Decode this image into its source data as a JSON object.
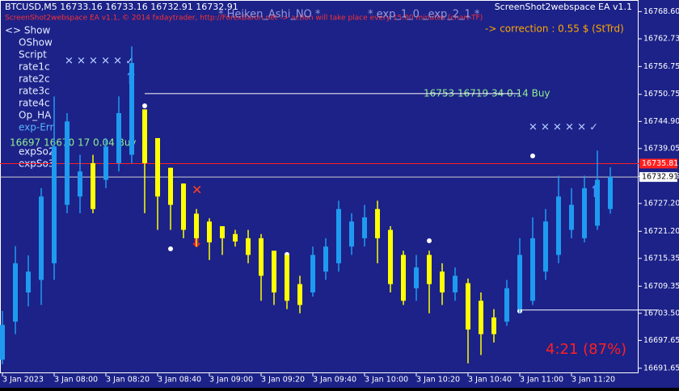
{
  "chart_data": {
    "type": "candlestick",
    "title": "BTCUSD,M5  16733.16 16733.16 16732.91 16732.91",
    "categories": [
      "3 Jan 2023",
      null,
      null,
      null,
      "3 Jan 08:00",
      null,
      null,
      null,
      "3 Jan 08:20",
      null,
      null,
      null,
      "3 Jan 08:40",
      null,
      null,
      null,
      "3 Jan 09:00",
      null,
      null,
      null,
      "3 Jan 09:20",
      null,
      null,
      null,
      "3 Jan 09:40",
      null,
      null,
      null,
      "3 Jan 10:00",
      null,
      null,
      null,
      "3 Jan 10:20",
      null,
      null,
      null,
      "3 Jan 10:40",
      null,
      null,
      null,
      "3 Jan 11:00",
      null,
      null,
      null,
      "3 Jan 11:20",
      null,
      null,
      null
    ],
    "open": [
      16693.5,
      16701.7,
      16708.0,
      16710.7,
      16714.3,
      16726.9,
      16728.7,
      16735.9,
      16732.3,
      16735.9,
      16737.7,
      16747.5,
      16741.3,
      16734.9,
      16731.5,
      16725.0,
      16723.3,
      16722.3,
      16720.6,
      16719.7,
      16719.7,
      16717.0,
      16716.1,
      16709.8,
      16708.0,
      16712.5,
      16714.3,
      16717.9,
      16719.7,
      16726.0,
      16721.5,
      16716.1,
      16708.9,
      16716.1,
      16712.5,
      16708.0,
      16710.0,
      16706.2,
      16702.6,
      16701.7,
      16704.4,
      16706.2,
      16712.5,
      16716.1,
      16721.5,
      16719.7,
      16722.4,
      16726.0
    ],
    "high": [
      16704.0,
      16718.0,
      16716.0,
      16730.5,
      16750.3,
      16746.7,
      16737.7,
      16737.7,
      16741.3,
      16750.3,
      16761.1,
      16747.5,
      16741.3,
      16734.9,
      16731.5,
      16726.0,
      16724.0,
      16722.3,
      16721.5,
      16721.5,
      16720.6,
      16717.0,
      16716.1,
      16711.6,
      16717.9,
      16719.7,
      16727.8,
      16725.1,
      16726.9,
      16727.8,
      16722.3,
      16717.0,
      16716.1,
      16717.0,
      16714.3,
      16713.4,
      16711.0,
      16708.0,
      16704.4,
      16710.7,
      16719.7,
      16724.2,
      16726.0,
      16733.2,
      16730.5,
      16733.2,
      16738.6,
      16735.0
    ],
    "low": [
      16692.5,
      16699.0,
      16705.0,
      16705.3,
      16710.7,
      16725.1,
      16725.1,
      16725.1,
      16730.5,
      16734.1,
      16735.9,
      16725.1,
      16721.5,
      16721.5,
      16719.7,
      16717.9,
      16715.0,
      16716.1,
      16717.9,
      16714.3,
      16706.2,
      16705.3,
      16704.4,
      16703.5,
      16707.1,
      16710.7,
      16712.5,
      16716.1,
      16717.9,
      16714.3,
      16708.0,
      16705.3,
      16706.2,
      16703.5,
      16705.3,
      16706.2,
      16692.7,
      16694.5,
      16697.2,
      16700.8,
      16703.5,
      16705.3,
      16710.7,
      16714.3,
      16719.7,
      16718.8,
      16721.5,
      16725.0
    ],
    "close": [
      16701.0,
      16714.3,
      16712.5,
      16728.7,
      16739.5,
      16744.9,
      16734.1,
      16726.0,
      16739.5,
      16746.7,
      16757.5,
      16735.9,
      16728.7,
      16726.9,
      16721.5,
      16719.7,
      16718.8,
      16719.7,
      16719.0,
      16716.1,
      16711.6,
      16708.0,
      16706.2,
      16705.3,
      16716.1,
      16717.9,
      16726.0,
      16723.3,
      16724.2,
      16719.7,
      16709.8,
      16706.2,
      16713.4,
      16709.8,
      16708.0,
      16711.6,
      16700.0,
      16699.0,
      16699.0,
      16708.9,
      16716.1,
      16719.7,
      16723.3,
      16728.7,
      16726.9,
      16730.5,
      16732.3,
      16732.91
    ],
    "up_color": "#1e9bf0",
    "down_color": "#ffff00",
    "ylim": [
      16690.57,
      16771.1
    ],
    "yticks": [
      {
        "value": 16768.6,
        "label": "16768.60"
      },
      16762.73,
      16756.75,
      16750.75,
      {
        "value": 16744.9,
        "label": "16744.90"
      },
      16739.05,
      16733.05,
      {
        "value": 16727.2,
        "label": "16727.20"
      },
      {
        "value": 16721.2,
        "label": "16721.20"
      },
      16715.35,
      16709.35,
      {
        "value": 16703.5,
        "label": "16703.50"
      },
      16697.65,
      16691.65
    ],
    "ask_line": 16735.81,
    "bid_line": 16732.91,
    "trade_lines": [
      16750.9,
      16704.2
    ]
  },
  "overlay": {
    "ea_name": "ScreenShot2webspace EA v1.1",
    "ea_notice": "ScreenShot2webspace EA v1.1, © 2014 fxdaytrader, http://ForexBaron.net -> action will take place every 15.00 minutes (chart-TF)",
    "indicator": "* Heiken_Ashi_NO *",
    "expiry": "* exp_1_0 _exp_2_1 *",
    "correction": "-> correction : 0.55 $ (StTrd)",
    "menu": [
      "<> Show",
      "OShow",
      "Script",
      "rate1c",
      "rate2c",
      "rate3c",
      "rate4c",
      "Op_HA",
      "exp-Err",
      "expSo2",
      "expSo3"
    ],
    "trade_1": "16753 16719 34 0.14 Buy",
    "trade_2": "16697 16670 17 0.04 Buy",
    "timer": "4:21 (87%)"
  }
}
